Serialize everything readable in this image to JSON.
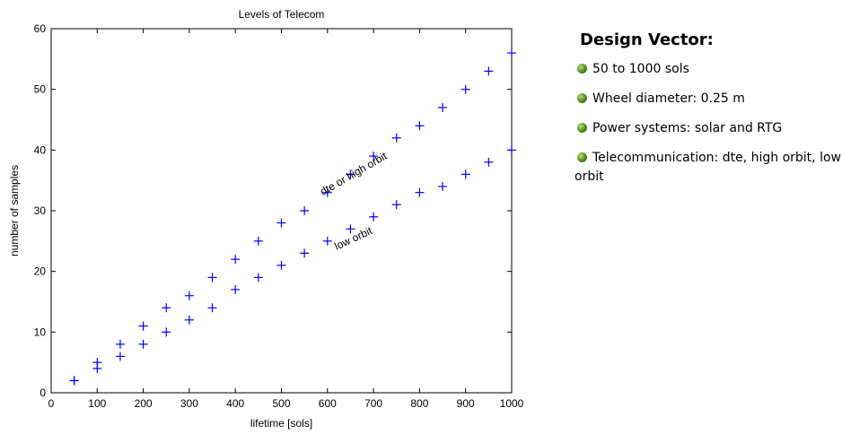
{
  "chart_data": {
    "type": "scatter",
    "title": "Levels of Telecom",
    "xlabel": "lifetime [sols]",
    "ylabel": "number of samples",
    "xlim": [
      0,
      1000
    ],
    "ylim": [
      0,
      60
    ],
    "xticks": [
      0,
      100,
      200,
      300,
      400,
      500,
      600,
      700,
      800,
      900,
      1000
    ],
    "yticks": [
      0,
      10,
      20,
      30,
      40,
      50,
      60
    ],
    "marker": "+",
    "marker_color": "#0000ff",
    "grid": false,
    "series": [
      {
        "name": "dte or high orbit",
        "x": [
          50,
          100,
          150,
          200,
          250,
          300,
          350,
          400,
          450,
          500,
          550,
          600,
          650,
          700,
          750,
          800,
          850,
          900,
          950,
          1000
        ],
        "y": [
          2,
          5,
          8,
          11,
          14,
          16,
          19,
          22,
          25,
          28,
          30,
          33,
          36,
          39,
          42,
          44,
          47,
          50,
          53,
          56
        ]
      },
      {
        "name": "low orbit",
        "x": [
          50,
          100,
          150,
          200,
          250,
          300,
          350,
          400,
          450,
          500,
          550,
          600,
          650,
          700,
          750,
          800,
          850,
          900,
          950,
          1000
        ],
        "y": [
          2,
          4,
          6,
          8,
          10,
          12,
          14,
          17,
          19,
          21,
          23,
          25,
          27,
          29,
          31,
          33,
          34,
          36,
          38,
          40
        ]
      }
    ],
    "annotations": [
      {
        "text": "dte or high orbit",
        "x": 590,
        "y": 32.5,
        "angle": -30
      },
      {
        "text": "low orbit",
        "x": 620,
        "y": 23.5,
        "angle": -25
      }
    ]
  },
  "design": {
    "heading": "Design Vector:",
    "items": [
      "50 to 1000 sols",
      "Wheel diameter: 0.25 m",
      "Power systems: solar and RTG",
      "Telecommunication: dte, high orbit, low orbit"
    ],
    "bullet_icon": "green-sphere-bullet-icon"
  }
}
